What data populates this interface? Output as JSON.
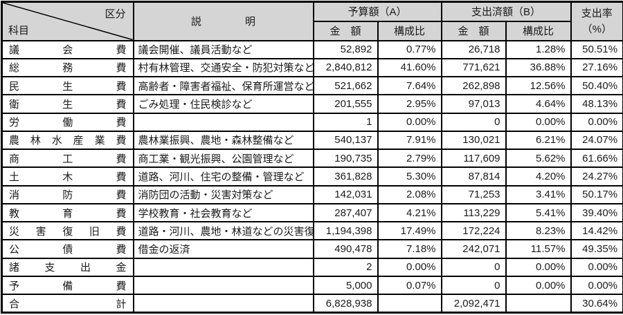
{
  "colors": {
    "header_bg": "#d5d5d5",
    "border": "#000000",
    "text": "#1a1a1a",
    "cell_bg": "#ffffff"
  },
  "header": {
    "corner_top_right": "区分",
    "corner_bottom_left": "科目",
    "description": "説　明",
    "budget_group": "予算額（A）",
    "spent_group": "支出済額（B）",
    "amount_label": "金　額",
    "ratio_label": "構成比",
    "rate_label_line1": "支出率",
    "rate_label_line2": "（%）"
  },
  "rows": [
    {
      "item": "議会費",
      "desc": "議会開催、議員活動など",
      "budget": "52,892",
      "budget_ratio": "0.77%",
      "spent": "26,718",
      "spent_ratio": "1.28%",
      "rate": "50.51%"
    },
    {
      "item": "総務費",
      "desc": "村有林管理、交通安全・防犯対策など",
      "budget": "2,840,812",
      "budget_ratio": "41.60%",
      "spent": "771,621",
      "spent_ratio": "36.88%",
      "rate": "27.16%"
    },
    {
      "item": "民生費",
      "desc": "高齢者・障害者福祉、保育所運営など",
      "budget": "521,662",
      "budget_ratio": "7.64%",
      "spent": "262,898",
      "spent_ratio": "12.56%",
      "rate": "50.40%"
    },
    {
      "item": "衛生費",
      "desc": "ごみ処理・住民検診など",
      "budget": "201,555",
      "budget_ratio": "2.95%",
      "spent": "97,013",
      "spent_ratio": "4.64%",
      "rate": "48.13%"
    },
    {
      "item": "労働費",
      "desc": "",
      "budget": "1",
      "budget_ratio": "0.00%",
      "spent": "0",
      "spent_ratio": "0.00%",
      "rate": "0.00%"
    },
    {
      "item": "農林水産業費",
      "desc": "農林業振興、農地・森林整備など",
      "budget": "540,137",
      "budget_ratio": "7.91%",
      "spent": "130,021",
      "spent_ratio": "6.21%",
      "rate": "24.07%"
    },
    {
      "item": "商工費",
      "desc": "商工業・観光振興、公園管理など",
      "budget": "190,735",
      "budget_ratio": "2.79%",
      "spent": "117,609",
      "spent_ratio": "5.62%",
      "rate": "61.66%"
    },
    {
      "item": "土木費",
      "desc": "道路、河川、住宅の整備・管理など",
      "budget": "361,828",
      "budget_ratio": "5.30%",
      "spent": "87,814",
      "spent_ratio": "4.20%",
      "rate": "24.27%"
    },
    {
      "item": "消防費",
      "desc": "消防団の活動・災害対策など",
      "budget": "142,031",
      "budget_ratio": "2.08%",
      "spent": "71,253",
      "spent_ratio": "3.41%",
      "rate": "50.17%"
    },
    {
      "item": "教育費",
      "desc": "学校教育・社会教育など",
      "budget": "287,407",
      "budget_ratio": "4.21%",
      "spent": "113,229",
      "spent_ratio": "5.41%",
      "rate": "39.40%"
    },
    {
      "item": "災害復旧費",
      "desc": "道路・河川、農地・林道などの災害復旧",
      "budget": "1,194,398",
      "budget_ratio": "17.49%",
      "spent": "172,224",
      "spent_ratio": "8.23%",
      "rate": "14.42%"
    },
    {
      "item": "公債費",
      "desc": "借金の返済",
      "budget": "490,478",
      "budget_ratio": "7.18%",
      "spent": "242,071",
      "spent_ratio": "11.57%",
      "rate": "49.35%"
    },
    {
      "item": "諸支出金",
      "desc": "",
      "budget": "2",
      "budget_ratio": "0.00%",
      "spent": "0",
      "spent_ratio": "0.00%",
      "rate": "0.00%"
    },
    {
      "item": "予備費",
      "desc": "",
      "budget": "5,000",
      "budget_ratio": "0.07%",
      "spent": "0",
      "spent_ratio": "0.00%",
      "rate": "0.00%"
    }
  ],
  "total_row": {
    "item": "合計",
    "desc": "",
    "budget": "6,828,938",
    "budget_ratio": "",
    "spent": "2,092,471",
    "spent_ratio": "",
    "rate": "30.64%"
  }
}
